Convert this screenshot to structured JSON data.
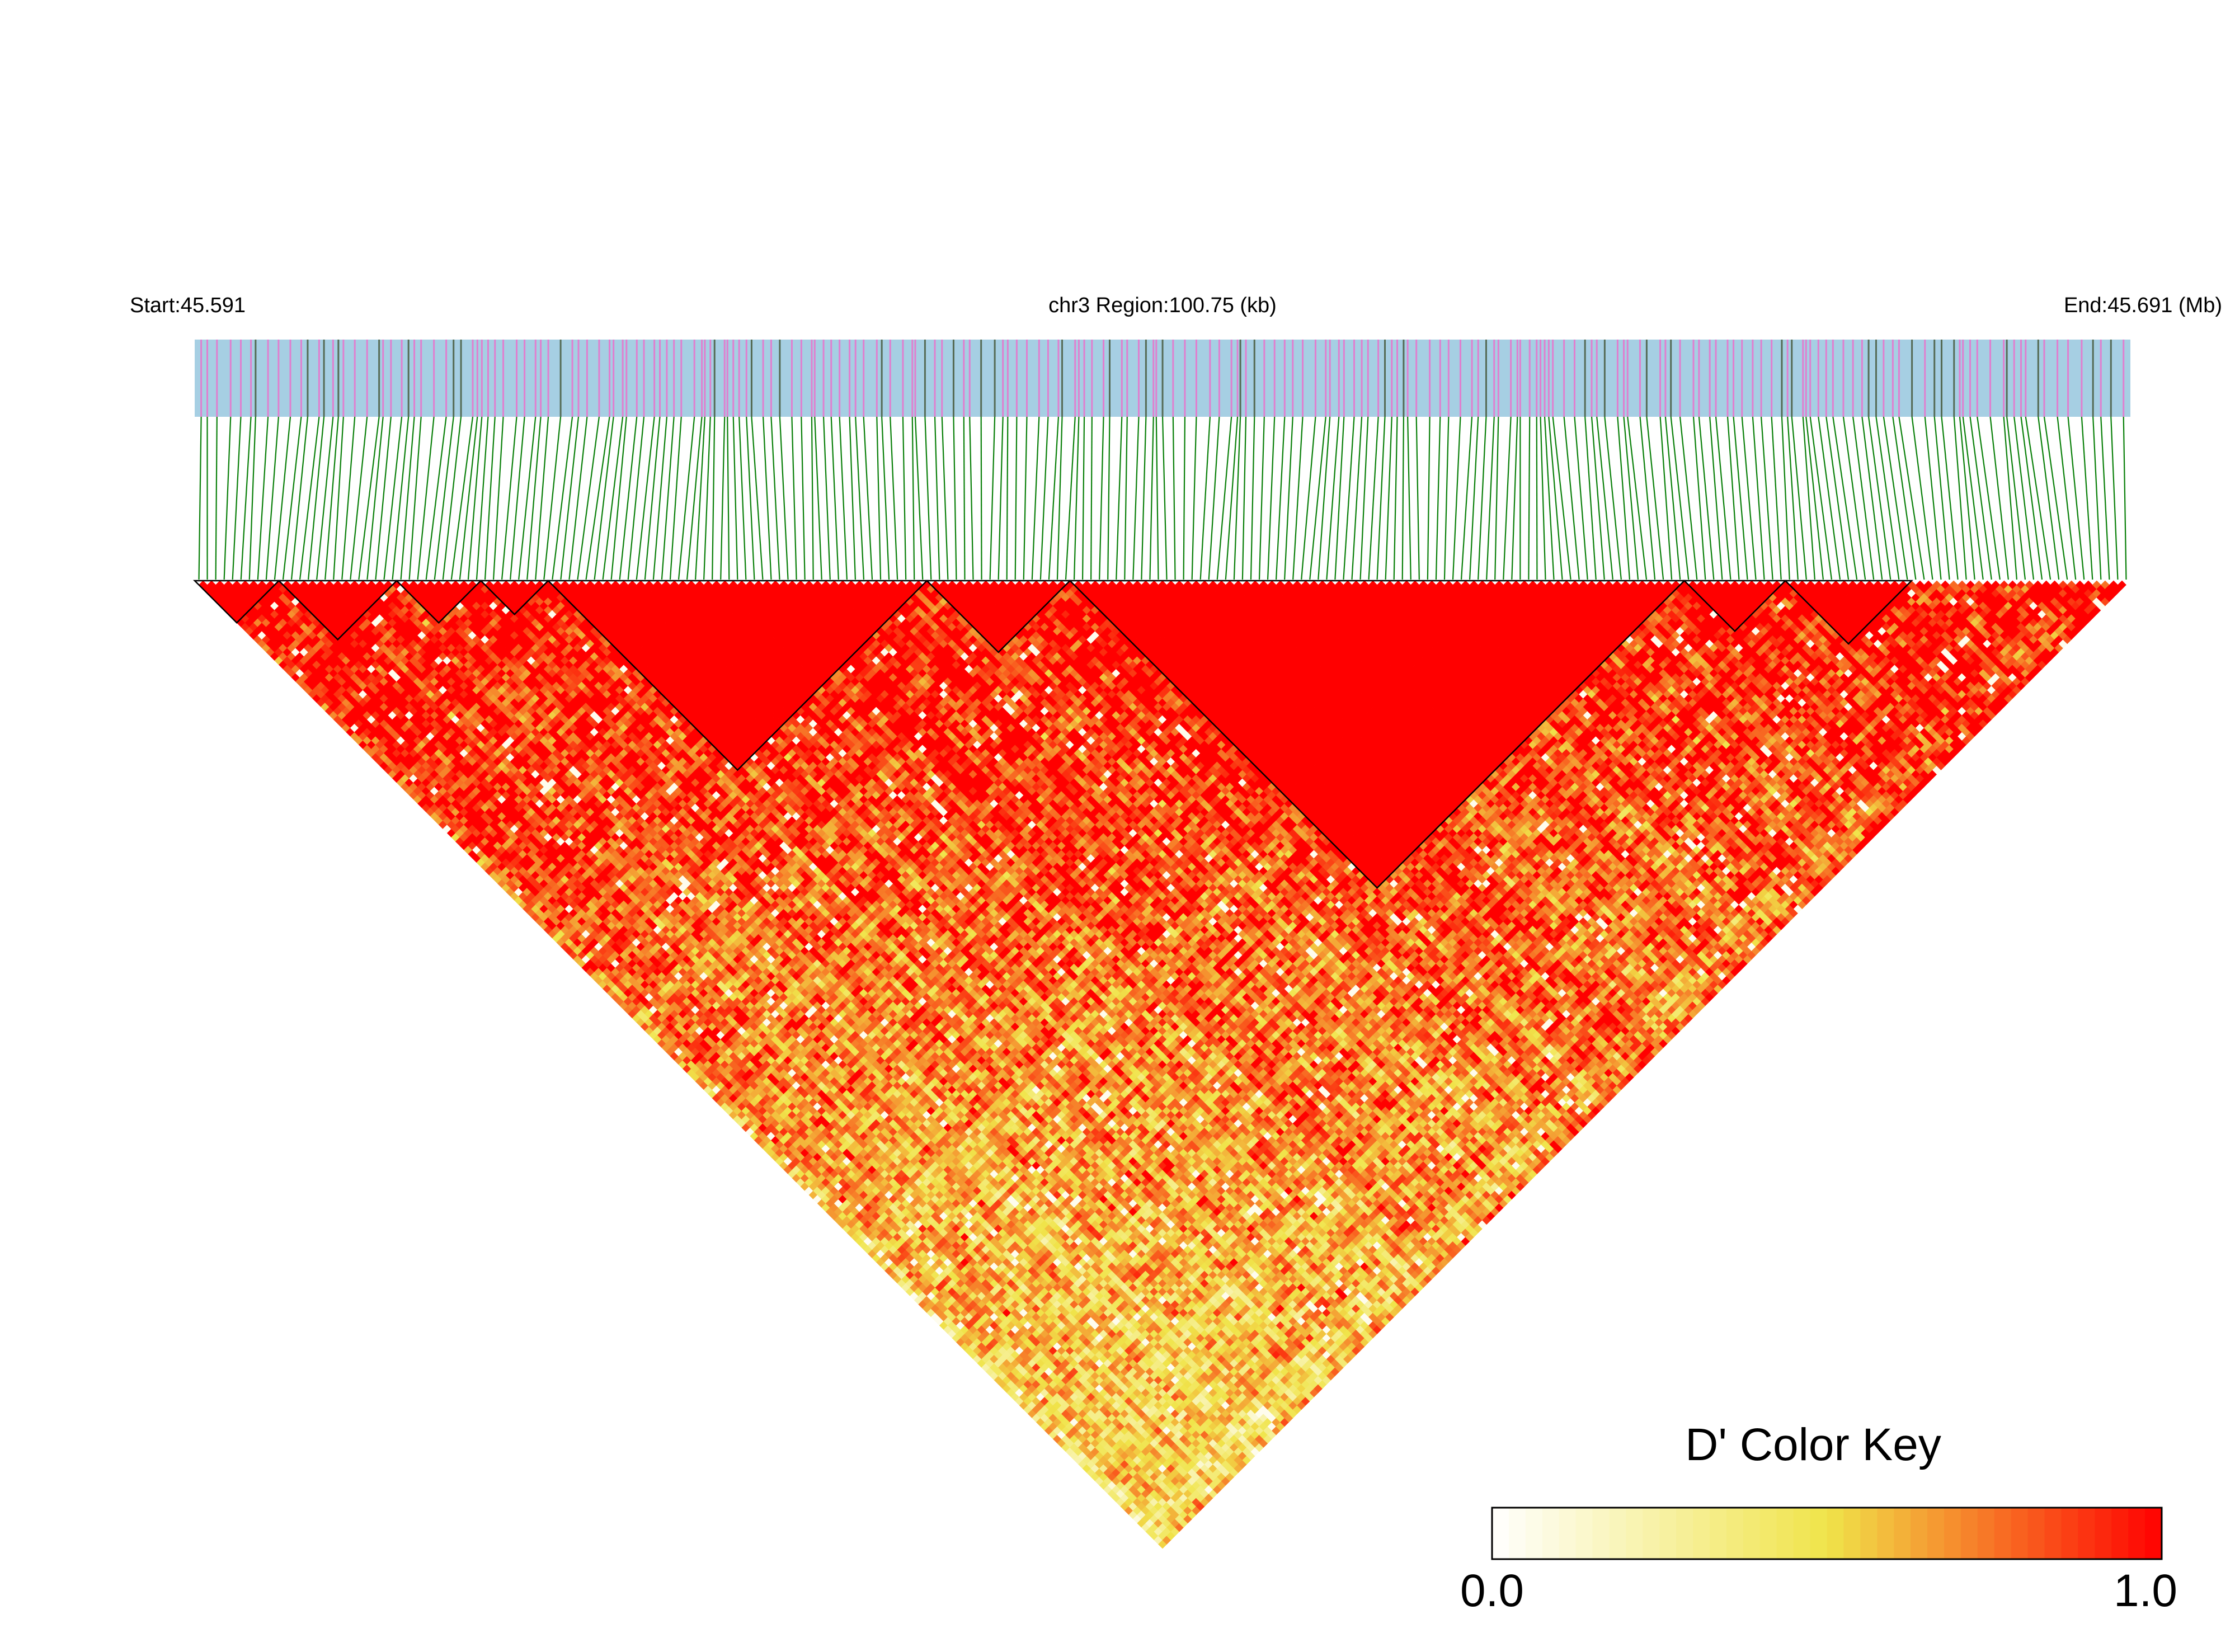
{
  "chart_data": {
    "type": "heatmap",
    "subtype": "LD block triangle",
    "chromosome": "chr3",
    "region_label": "chr3 Region:100.75 (kb)",
    "start_label": "Start:45.591",
    "end_label": "End:45.691 (Mb)",
    "start_mb": 45.591,
    "end_mb": 45.691,
    "region_kb": 100.75,
    "n_snps_approx": 230,
    "metric": "D'",
    "color_key": {
      "title": "D' Color Key",
      "min_label": "0.0",
      "max_label": "1.0",
      "range": [
        0,
        1
      ],
      "colors": [
        "#ffffff",
        "#f0e44a",
        "#ff0000"
      ]
    },
    "snp_track": {
      "background": "#a6cfe3",
      "marker_colors": [
        "#e07fcf",
        "#556b55"
      ]
    },
    "connector_color": "#0a800a",
    "blocks": [
      {
        "snp_start": 0,
        "snp_end": 9
      },
      {
        "snp_start": 10,
        "snp_end": 23
      },
      {
        "snp_start": 24,
        "snp_end": 33
      },
      {
        "snp_start": 34,
        "snp_end": 41
      },
      {
        "snp_start": 42,
        "snp_end": 86
      },
      {
        "snp_start": 87,
        "snp_end": 103
      },
      {
        "snp_start": 104,
        "snp_end": 176
      },
      {
        "snp_start": 177,
        "snp_end": 188
      },
      {
        "snp_start": 189,
        "snp_end": 203
      }
    ]
  }
}
